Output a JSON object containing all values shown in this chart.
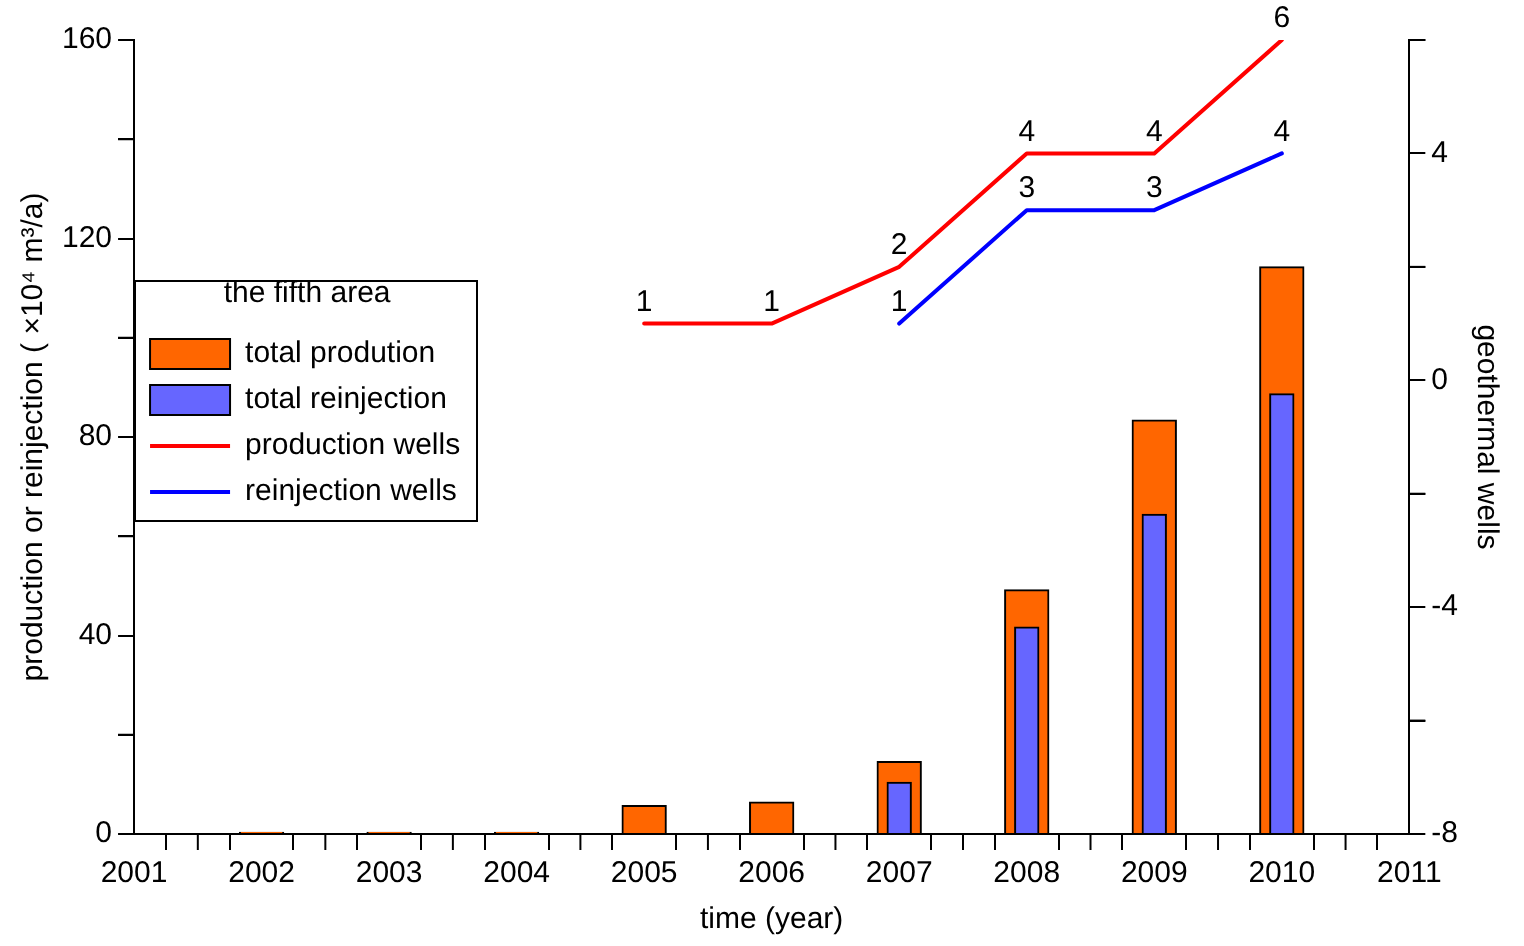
{
  "chart_data": {
    "type": "bar",
    "legend_title": "the fifth area",
    "xlabel": "time (year)",
    "ylabel": "production or reinjection ( ×10⁴ m³/a)",
    "y2label": "geothermal wells",
    "x": [
      2002,
      2003,
      2004,
      2005,
      2006,
      2007,
      2008,
      2009,
      2010
    ],
    "series": [
      {
        "name": "total prodution",
        "color": "#ff6600",
        "values": [
          0.3,
          0.3,
          0.3,
          5.7,
          6.4,
          14.6,
          49.2,
          83.4,
          114.3
        ]
      },
      {
        "name": "total reinjection",
        "color": "#6666ff",
        "values": [
          null,
          null,
          null,
          null,
          null,
          10.4,
          41.7,
          64.4,
          88.7
        ]
      },
      {
        "name": "production wells",
        "type": "line",
        "axis": "y2",
        "color": "#ff0000",
        "x": [
          2005,
          2006,
          2007,
          2008,
          2009,
          2010
        ],
        "values": [
          1,
          1,
          2,
          4,
          4,
          6
        ],
        "value_labels": [
          "1",
          "1",
          "2",
          "4",
          "4",
          "6"
        ]
      },
      {
        "name": "reinjection wells",
        "type": "line",
        "axis": "y2",
        "color": "#0000ff",
        "x": [
          2007,
          2008,
          2009,
          2010
        ],
        "values": [
          1,
          3,
          3,
          4
        ],
        "value_labels": [
          "1",
          "3",
          "3",
          "4"
        ]
      }
    ],
    "xlim": [
      2001,
      2011
    ],
    "xticks": [
      2001,
      {
        "value": 2001.5,
        "label": null
      },
      2002,
      {
        "value": 2002.5,
        "label": null
      },
      2003,
      {
        "value": 2003.5,
        "label": null
      },
      2004,
      {
        "value": 2004.5,
        "label": null
      },
      2005,
      {
        "value": 2005.5,
        "label": null
      },
      2006,
      {
        "value": 2006.5,
        "label": null
      },
      2007,
      {
        "value": 2007.5,
        "label": null
      },
      2008,
      {
        "value": 2008.5,
        "label": null
      },
      2009,
      {
        "value": 2009.5,
        "label": null
      },
      2010,
      {
        "value": 2010.5,
        "label": null
      },
      2011
    ],
    "ylim": [
      0,
      160
    ],
    "yticks": [
      0,
      {
        "value": 20,
        "label": null
      },
      40,
      {
        "value": 60,
        "label": null
      },
      80,
      {
        "value": 100,
        "label": null
      },
      120,
      {
        "value": 140,
        "label": null
      },
      160
    ],
    "y2lim": [
      -8,
      6
    ],
    "y2ticks": [
      -8,
      {
        "value": -6,
        "label": null
      },
      -4,
      {
        "value": -2,
        "label": null
      },
      0,
      {
        "value": 2,
        "label": null
      },
      4,
      {
        "value": 6,
        "label": null
      }
    ],
    "grid": false,
    "legend": "left",
    "marker": "none"
  }
}
